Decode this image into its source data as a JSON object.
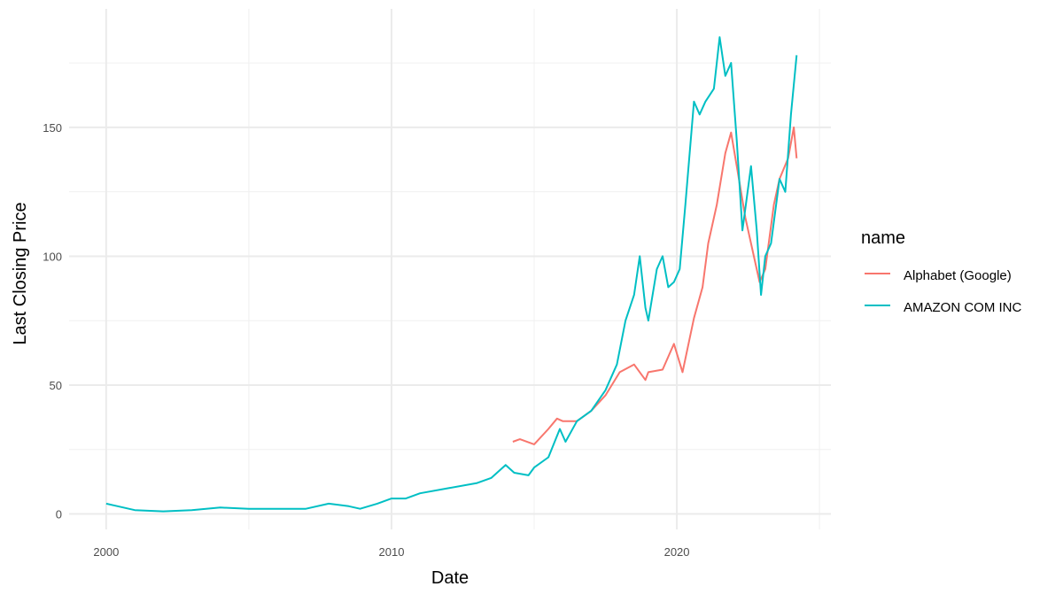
{
  "chart_data": {
    "type": "line",
    "title": "",
    "xlabel": "Date",
    "ylabel": "Last Closing Price",
    "xlim": [
      1998.7,
      2025.4
    ],
    "ylim": [
      -6,
      196
    ],
    "x_ticks": [
      2000,
      2010,
      2020
    ],
    "x_tick_labels": [
      "2000",
      "2010",
      "2020"
    ],
    "y_ticks": [
      0,
      50,
      100,
      150
    ],
    "y_tick_labels": [
      "0",
      "50",
      "100",
      "150"
    ],
    "grid": true,
    "legend": {
      "title": "name",
      "position": "right"
    },
    "series": [
      {
        "name": "Alphabet (Google)",
        "color": "#F8766D",
        "x": [
          2014.25,
          2014.5,
          2015,
          2015.5,
          2015.8,
          2016,
          2016.5,
          2017,
          2017.5,
          2018,
          2018.5,
          2018.9,
          2019,
          2019.5,
          2019.9,
          2020.2,
          2020.6,
          2020.9,
          2021.1,
          2021.4,
          2021.7,
          2021.9,
          2022.1,
          2022.4,
          2022.7,
          2022.9,
          2023.1,
          2023.4,
          2023.6,
          2023.9,
          2024.1,
          2024.2
        ],
        "y": [
          28,
          29,
          27,
          33,
          37,
          36,
          36,
          40,
          46,
          55,
          58,
          52,
          55,
          56,
          66,
          55,
          76,
          88,
          105,
          120,
          140,
          148,
          135,
          115,
          100,
          90,
          95,
          120,
          130,
          138,
          150,
          138
        ]
      },
      {
        "name": "AMAZON COM INC",
        "color": "#00BFC4",
        "x": [
          2000,
          2001,
          2002,
          2003,
          2004,
          2005,
          2006,
          2007,
          2007.8,
          2008.5,
          2008.9,
          2009.5,
          2010,
          2010.5,
          2011,
          2012,
          2013,
          2013.5,
          2014,
          2014.3,
          2014.8,
          2015,
          2015.5,
          2015.9,
          2016.1,
          2016.5,
          2017,
          2017.5,
          2017.9,
          2018.2,
          2018.5,
          2018.7,
          2018.9,
          2019,
          2019.3,
          2019.5,
          2019.7,
          2019.9,
          2020.1,
          2020.3,
          2020.6,
          2020.8,
          2021,
          2021.3,
          2021.5,
          2021.7,
          2021.9,
          2022.1,
          2022.3,
          2022.6,
          2022.8,
          2022.95,
          2023.1,
          2023.3,
          2023.6,
          2023.8,
          2024.0,
          2024.2
        ],
        "y": [
          4,
          1.5,
          1,
          1.5,
          2.5,
          2,
          2,
          2,
          4,
          3,
          2,
          4,
          6,
          6,
          8,
          10,
          12,
          14,
          19,
          16,
          15,
          18,
          22,
          33,
          28,
          36,
          40,
          48,
          58,
          75,
          85,
          100,
          80,
          75,
          95,
          100,
          88,
          90,
          95,
          120,
          160,
          155,
          160,
          165,
          185,
          170,
          175,
          145,
          110,
          135,
          110,
          85,
          100,
          105,
          130,
          125,
          155,
          178
        ]
      }
    ]
  }
}
